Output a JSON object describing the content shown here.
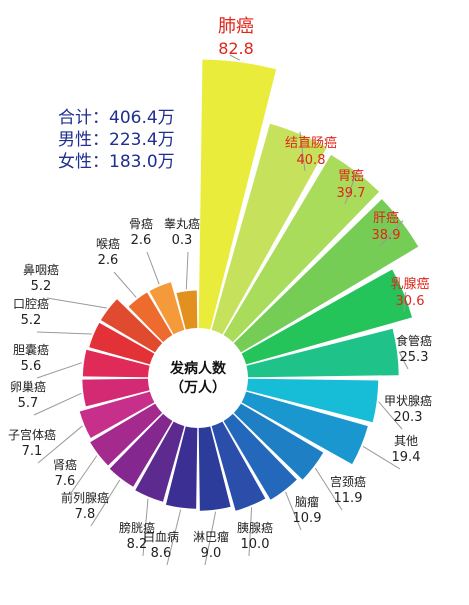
{
  "totals": {
    "total": "合计：406.4万",
    "male": "男性：223.4万",
    "female": "女性：183.0万"
  },
  "chart_data": {
    "type": "polar-bar",
    "center_label": [
      "发病人数",
      "（万人）"
    ],
    "title": "",
    "highlight_color": "#e0261a",
    "categories": [
      "肺癌",
      "结直肠癌",
      "胃癌",
      "肝癌",
      "乳腺癌",
      "食管癌",
      "甲状腺癌",
      "其他",
      "宫颈癌",
      "脑瘤",
      "胰腺癌",
      "淋巴瘤",
      "白血病",
      "膀胱癌",
      "前列腺癌",
      "肾癌",
      "子宫体癌",
      "卵巢癌",
      "胆囊癌",
      "口腔癌",
      "鼻咽癌",
      "喉癌",
      "骨癌",
      "睾丸癌"
    ],
    "values": [
      "82.8",
      "40.8",
      "39.7",
      "38.9",
      "30.6",
      "25.3",
      "20.3",
      "19.4",
      "11.9",
      "10.9",
      "10.0",
      "9.0",
      "8.6",
      "8.2",
      "7.8",
      "7.6",
      "7.1",
      "5.7",
      "5.6",
      "5.2",
      "5.2",
      "2.6",
      "2.6",
      "0.3"
    ],
    "highlighted": [
      "肺癌",
      "结直肠癌",
      "胃癌",
      "肝癌",
      "乳腺癌"
    ],
    "colors": [
      "#e9ec3a",
      "#c6e25c",
      "#a8dc5a",
      "#76cd56",
      "#25c45a",
      "#1fc389",
      "#17bcd6",
      "#1b97d0",
      "#1e7fc4",
      "#2368bb",
      "#2a4eaa",
      "#2b3c9b",
      "#3c2f93",
      "#5d2a90",
      "#84288f",
      "#a42a8e",
      "#c62f8a",
      "#d42a73",
      "#e02a58",
      "#e23237",
      "#e04a2f",
      "#ee6b2e",
      "#f59a3a",
      "#e2911f"
    ]
  }
}
